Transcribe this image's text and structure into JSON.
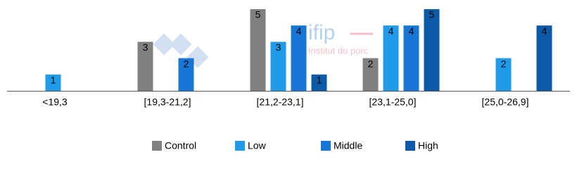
{
  "chart_data": {
    "type": "bar",
    "categories": [
      "<19,3",
      "[19,3-21,2]",
      "[21,2-23,1]",
      "[23,1-25,0]",
      "[25,0-26,9]"
    ],
    "series": [
      {
        "name": "Control",
        "color": "#808080",
        "values": [
          null,
          3,
          5,
          2,
          null
        ]
      },
      {
        "name": "Low",
        "color": "#1f9bea",
        "values": [
          1,
          null,
          3,
          4,
          2
        ]
      },
      {
        "name": "Middle",
        "color": "#1877d6",
        "values": [
          null,
          2,
          4,
          4,
          null
        ]
      },
      {
        "name": "High",
        "color": "#0c5aa8",
        "values": [
          null,
          null,
          1,
          5,
          4
        ]
      }
    ],
    "ylim": [
      0,
      5
    ],
    "watermark": {
      "logo": "ifip",
      "subtitle": "Institut du porc"
    }
  }
}
